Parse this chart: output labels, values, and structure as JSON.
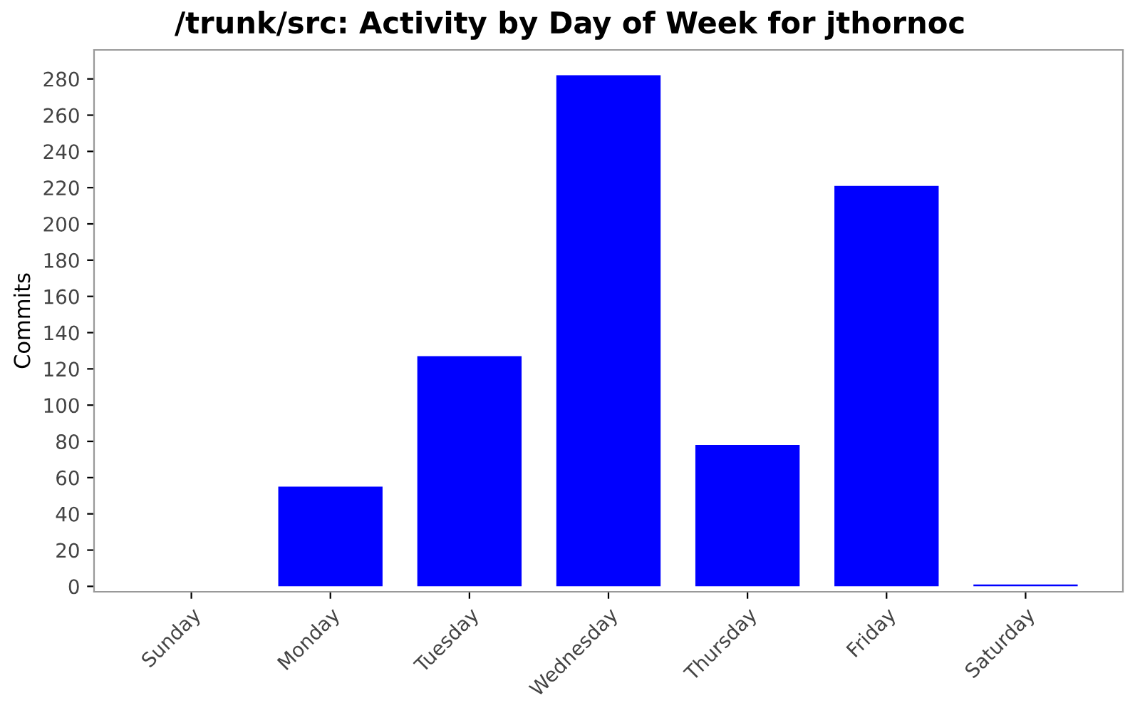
{
  "chart_data": {
    "type": "bar",
    "title": "/trunk/src: Activity by Day of Week for jthornoc",
    "ylabel": "Commits",
    "categories": [
      "Sunday",
      "Monday",
      "Tuesday",
      "Wednesday",
      "Thursday",
      "Friday",
      "Saturday"
    ],
    "values": [
      0,
      55,
      127,
      282,
      78,
      221,
      1
    ],
    "color": "#0000ff",
    "ylim": [
      -3,
      296
    ],
    "yticks": [
      0,
      20,
      40,
      60,
      80,
      100,
      120,
      140,
      160,
      180,
      200,
      220,
      240,
      260,
      280
    ],
    "grid": false
  }
}
